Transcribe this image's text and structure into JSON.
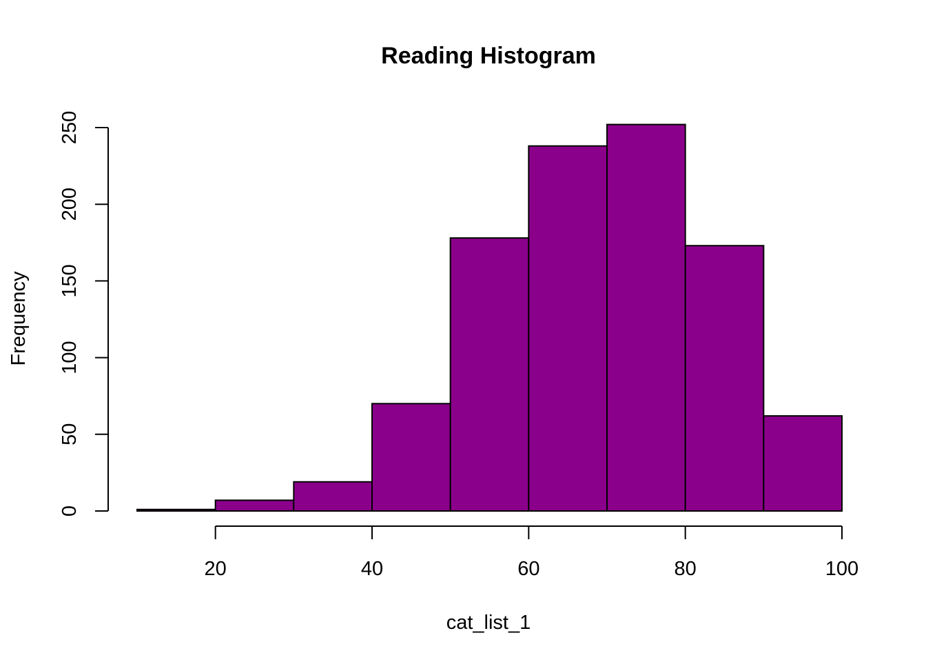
{
  "chart_data": {
    "type": "bar",
    "title": "Reading Histogram",
    "xlabel": "cat_list_1",
    "ylabel": "Frequency",
    "bins": [
      {
        "from": 10,
        "to": 20,
        "count": 1
      },
      {
        "from": 20,
        "to": 30,
        "count": 7
      },
      {
        "from": 30,
        "to": 40,
        "count": 19
      },
      {
        "from": 40,
        "to": 50,
        "count": 70
      },
      {
        "from": 50,
        "to": 60,
        "count": 178
      },
      {
        "from": 60,
        "to": 70,
        "count": 238
      },
      {
        "from": 70,
        "to": 80,
        "count": 252
      },
      {
        "from": 80,
        "to": 90,
        "count": 173
      },
      {
        "from": 90,
        "to": 100,
        "count": 62
      }
    ],
    "xlim": [
      10,
      100
    ],
    "ylim": [
      0,
      250
    ],
    "x_ticks": [
      20,
      40,
      60,
      80,
      100
    ],
    "y_ticks": [
      0,
      50,
      100,
      150,
      200,
      250
    ],
    "bar_color": "#8B008B",
    "grid": false,
    "legend": "none"
  }
}
